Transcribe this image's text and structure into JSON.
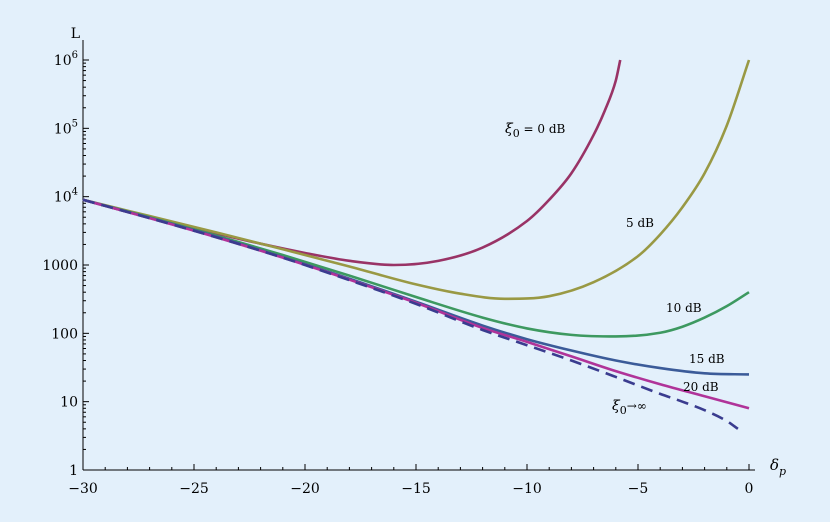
{
  "chart_data": {
    "type": "line",
    "y_scale": "log",
    "xlim": [
      -30,
      0
    ],
    "ylim": [
      1,
      1000000
    ],
    "xlabel": "δ",
    "xlabel_sub": "p",
    "ylabel": "L",
    "grid": false,
    "x_ticks": [
      -30,
      -25,
      -20,
      -15,
      -10,
      -5,
      0
    ],
    "x_tick_labels": [
      "−30",
      "−25",
      "−20",
      "−15",
      "−10",
      "−5",
      "0"
    ],
    "y_ticks": [
      1,
      10,
      100,
      1000,
      10000,
      100000,
      1000000
    ],
    "y_tick_labels": [
      {
        "text": "1",
        "exp": ""
      },
      {
        "text": "10",
        "exp": ""
      },
      {
        "text": "100",
        "exp": ""
      },
      {
        "text": "1000",
        "exp": ""
      },
      {
        "text": "10",
        "exp": "4"
      },
      {
        "text": "10",
        "exp": "5"
      },
      {
        "text": "10",
        "exp": "6"
      }
    ],
    "series": [
      {
        "label": "0 dB",
        "label_prefix": "ξ",
        "label_sub": "0",
        "label_suffix": " = 0 dB",
        "color": "#993366",
        "dash": false,
        "x": [
          -30,
          -28,
          -26,
          -24,
          -22,
          -20,
          -18,
          -16,
          -14,
          -12,
          -10,
          -9,
          -8,
          -7,
          -6.5,
          -6,
          -5.8
        ],
        "y": [
          9000,
          6000,
          4100,
          2900,
          2050,
          1500,
          1150,
          1000,
          1150,
          1800,
          4400,
          9000,
          22000,
          80000,
          180000,
          500000,
          1000000
        ]
      },
      {
        "label": "5 dB",
        "label_prefix": "",
        "label_sub": "",
        "label_suffix": "5 dB",
        "color": "#999944",
        "dash": false,
        "x": [
          -30,
          -27,
          -24,
          -21,
          -18,
          -15,
          -13,
          -11,
          -9,
          -7,
          -5,
          -4,
          -3,
          -2,
          -1,
          0
        ],
        "y": [
          9000,
          5200,
          3000,
          1700,
          950,
          520,
          380,
          320,
          350,
          560,
          1350,
          2800,
          7000,
          22000,
          110000,
          1000000
        ]
      },
      {
        "label": "10 dB",
        "label_prefix": "",
        "label_sub": "",
        "label_suffix": "10 dB",
        "color": "#3d9960",
        "dash": false,
        "x": [
          -30,
          -27,
          -24,
          -21,
          -18,
          -15,
          -12,
          -10,
          -8,
          -6,
          -4,
          -3,
          -2,
          -1,
          0
        ],
        "y": [
          9000,
          5000,
          2700,
          1400,
          700,
          340,
          170,
          118,
          95,
          90,
          102,
          125,
          170,
          250,
          400
        ]
      },
      {
        "label": "15 dB",
        "label_prefix": "",
        "label_sub": "",
        "label_suffix": "15 dB",
        "color": "#3b5b99",
        "dash": false,
        "x": [
          -30,
          -27,
          -24,
          -21,
          -18,
          -15,
          -12,
          -10,
          -8,
          -6,
          -4,
          -2,
          0
        ],
        "y": [
          9000,
          4900,
          2600,
          1300,
          630,
          290,
          130,
          82,
          56,
          40,
          31,
          26,
          25
        ]
      },
      {
        "label": "20 dB",
        "label_prefix": "",
        "label_sub": "",
        "label_suffix": "20 dB",
        "color": "#b03399",
        "dash": false,
        "x": [
          -30,
          -27,
          -24,
          -21,
          -18,
          -15,
          -12,
          -10,
          -8,
          -6,
          -4,
          -2,
          0
        ],
        "y": [
          9000,
          4850,
          2550,
          1280,
          610,
          280,
          120,
          75,
          46,
          28,
          18,
          12,
          8
        ]
      },
      {
        "label": "ξ0→∞",
        "label_prefix": "ξ",
        "label_sub": "0",
        "label_suffix": "→∞",
        "color": "#3a3c8f",
        "dash": true,
        "x": [
          -30,
          -27,
          -24,
          -21,
          -18,
          -15,
          -12,
          -10,
          -8,
          -6,
          -4,
          -3,
          -2,
          -1,
          -0.5
        ],
        "y": [
          9000,
          4850,
          2550,
          1280,
          600,
          270,
          112,
          67,
          40,
          23,
          13,
          10,
          7.5,
          5.2,
          4
        ]
      }
    ]
  }
}
